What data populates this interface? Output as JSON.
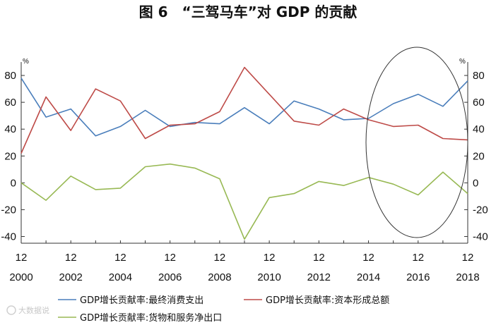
{
  "watermark": "大数据说",
  "chart_data": {
    "type": "line",
    "title": "图 6　“三驾马车”对 GDP 的贡献",
    "y_unit_left": "%",
    "y_unit_right": "%",
    "ylim": [
      -45,
      90
    ],
    "yticks": [
      80,
      60,
      40,
      20,
      0,
      -20,
      -40
    ],
    "ytick_labels": [
      "80",
      "60",
      "40",
      "20",
      "0",
      "-20",
      "-40"
    ],
    "x": [
      2000,
      2001,
      2002,
      2003,
      2004,
      2005,
      2006,
      2007,
      2008,
      2009,
      2010,
      2011,
      2012,
      2013,
      2014,
      2015,
      2016,
      2017,
      2018
    ],
    "x_month_label": "12",
    "x_year_labels": [
      "2000",
      "2002",
      "2004",
      "2006",
      "2008",
      "2010",
      "2012",
      "2014",
      "2016",
      "2018"
    ],
    "grid": false,
    "legend_position": "bottom",
    "series": [
      {
        "name": "GDP增长贡献率:最终消费支出",
        "color": "#4a7ebb",
        "values": [
          78,
          49,
          55,
          35,
          42,
          54,
          42,
          45,
          44,
          56,
          44,
          61,
          55,
          47,
          48,
          59,
          66,
          57,
          76
        ]
      },
      {
        "name": "GDP增长贡献率:资本形成总额",
        "color": "#be4b48",
        "values": [
          22,
          64,
          39,
          70,
          61,
          33,
          43,
          44,
          53,
          86,
          66,
          46,
          43,
          55,
          47,
          42,
          43,
          33,
          32
        ]
      },
      {
        "name": "GDP增长贡献率:货物和服务净出口",
        "color": "#98b954",
        "values": [
          0,
          -13,
          5,
          -5,
          -4,
          12,
          14,
          11,
          3,
          -42,
          -11,
          -8,
          1,
          -2,
          4,
          -1,
          -9,
          8,
          -8
        ]
      }
    ]
  }
}
